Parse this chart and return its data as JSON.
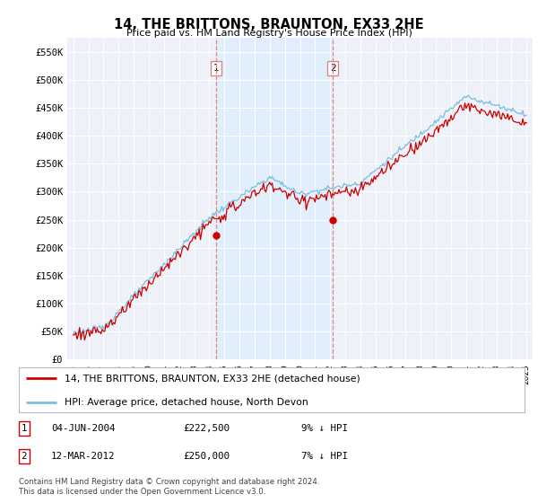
{
  "title": "14, THE BRITTONS, BRAUNTON, EX33 2HE",
  "subtitle": "Price paid vs. HM Land Registry's House Price Index (HPI)",
  "ylabel_ticks": [
    "£0",
    "£50K",
    "£100K",
    "£150K",
    "£200K",
    "£250K",
    "£300K",
    "£350K",
    "£400K",
    "£450K",
    "£500K",
    "£550K"
  ],
  "ytick_values": [
    0,
    50000,
    100000,
    150000,
    200000,
    250000,
    300000,
    350000,
    400000,
    450000,
    500000,
    550000
  ],
  "ylim": [
    0,
    575000
  ],
  "xlim_start": 1994.6,
  "xlim_end": 2025.4,
  "hpi_color": "#7bbde0",
  "hpi_shade_color": "#dceeff",
  "price_color": "#cc0000",
  "marker1_date_x": 2004.43,
  "marker1_y": 222500,
  "marker2_date_x": 2012.19,
  "marker2_y": 250000,
  "annotation1": {
    "label": "1",
    "date": "04-JUN-2004",
    "price": "£222,500",
    "pct": "9% ↓ HPI"
  },
  "annotation2": {
    "label": "2",
    "date": "12-MAR-2012",
    "price": "£250,000",
    "pct": "7% ↓ HPI"
  },
  "legend_line1": "14, THE BRITTONS, BRAUNTON, EX33 2HE (detached house)",
  "legend_line2": "HPI: Average price, detached house, North Devon",
  "footer1": "Contains HM Land Registry data © Crown copyright and database right 2024.",
  "footer2": "This data is licensed under the Open Government Licence v3.0.",
  "bg_color": "#ffffff",
  "plot_bg_color": "#eef2f8",
  "grid_color": "#ffffff",
  "dashed_line_color": "#dd8888"
}
